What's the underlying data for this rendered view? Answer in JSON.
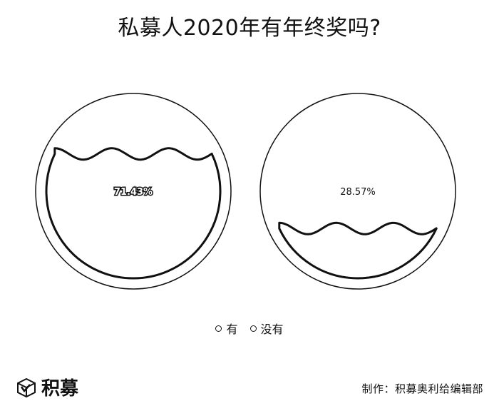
{
  "chart_data": {
    "type": "liquidfill",
    "title": "私募人2020年有年终奖吗?",
    "series": [
      {
        "name": "有",
        "value": 71.43,
        "label": "71.43%"
      },
      {
        "name": "没有",
        "value": 28.57,
        "label": "28.57%"
      }
    ],
    "legend": [
      "有",
      "没有"
    ],
    "legend_position": "bottom-center"
  },
  "footer": {
    "logo_text": "积募",
    "credit": "制作：积募奥利给编辑部"
  },
  "colors": {
    "ink": "#111111",
    "background": "#ffffff"
  },
  "icons": {
    "logo": "box-logo-icon",
    "legend_marker": "circle-marker-icon"
  }
}
